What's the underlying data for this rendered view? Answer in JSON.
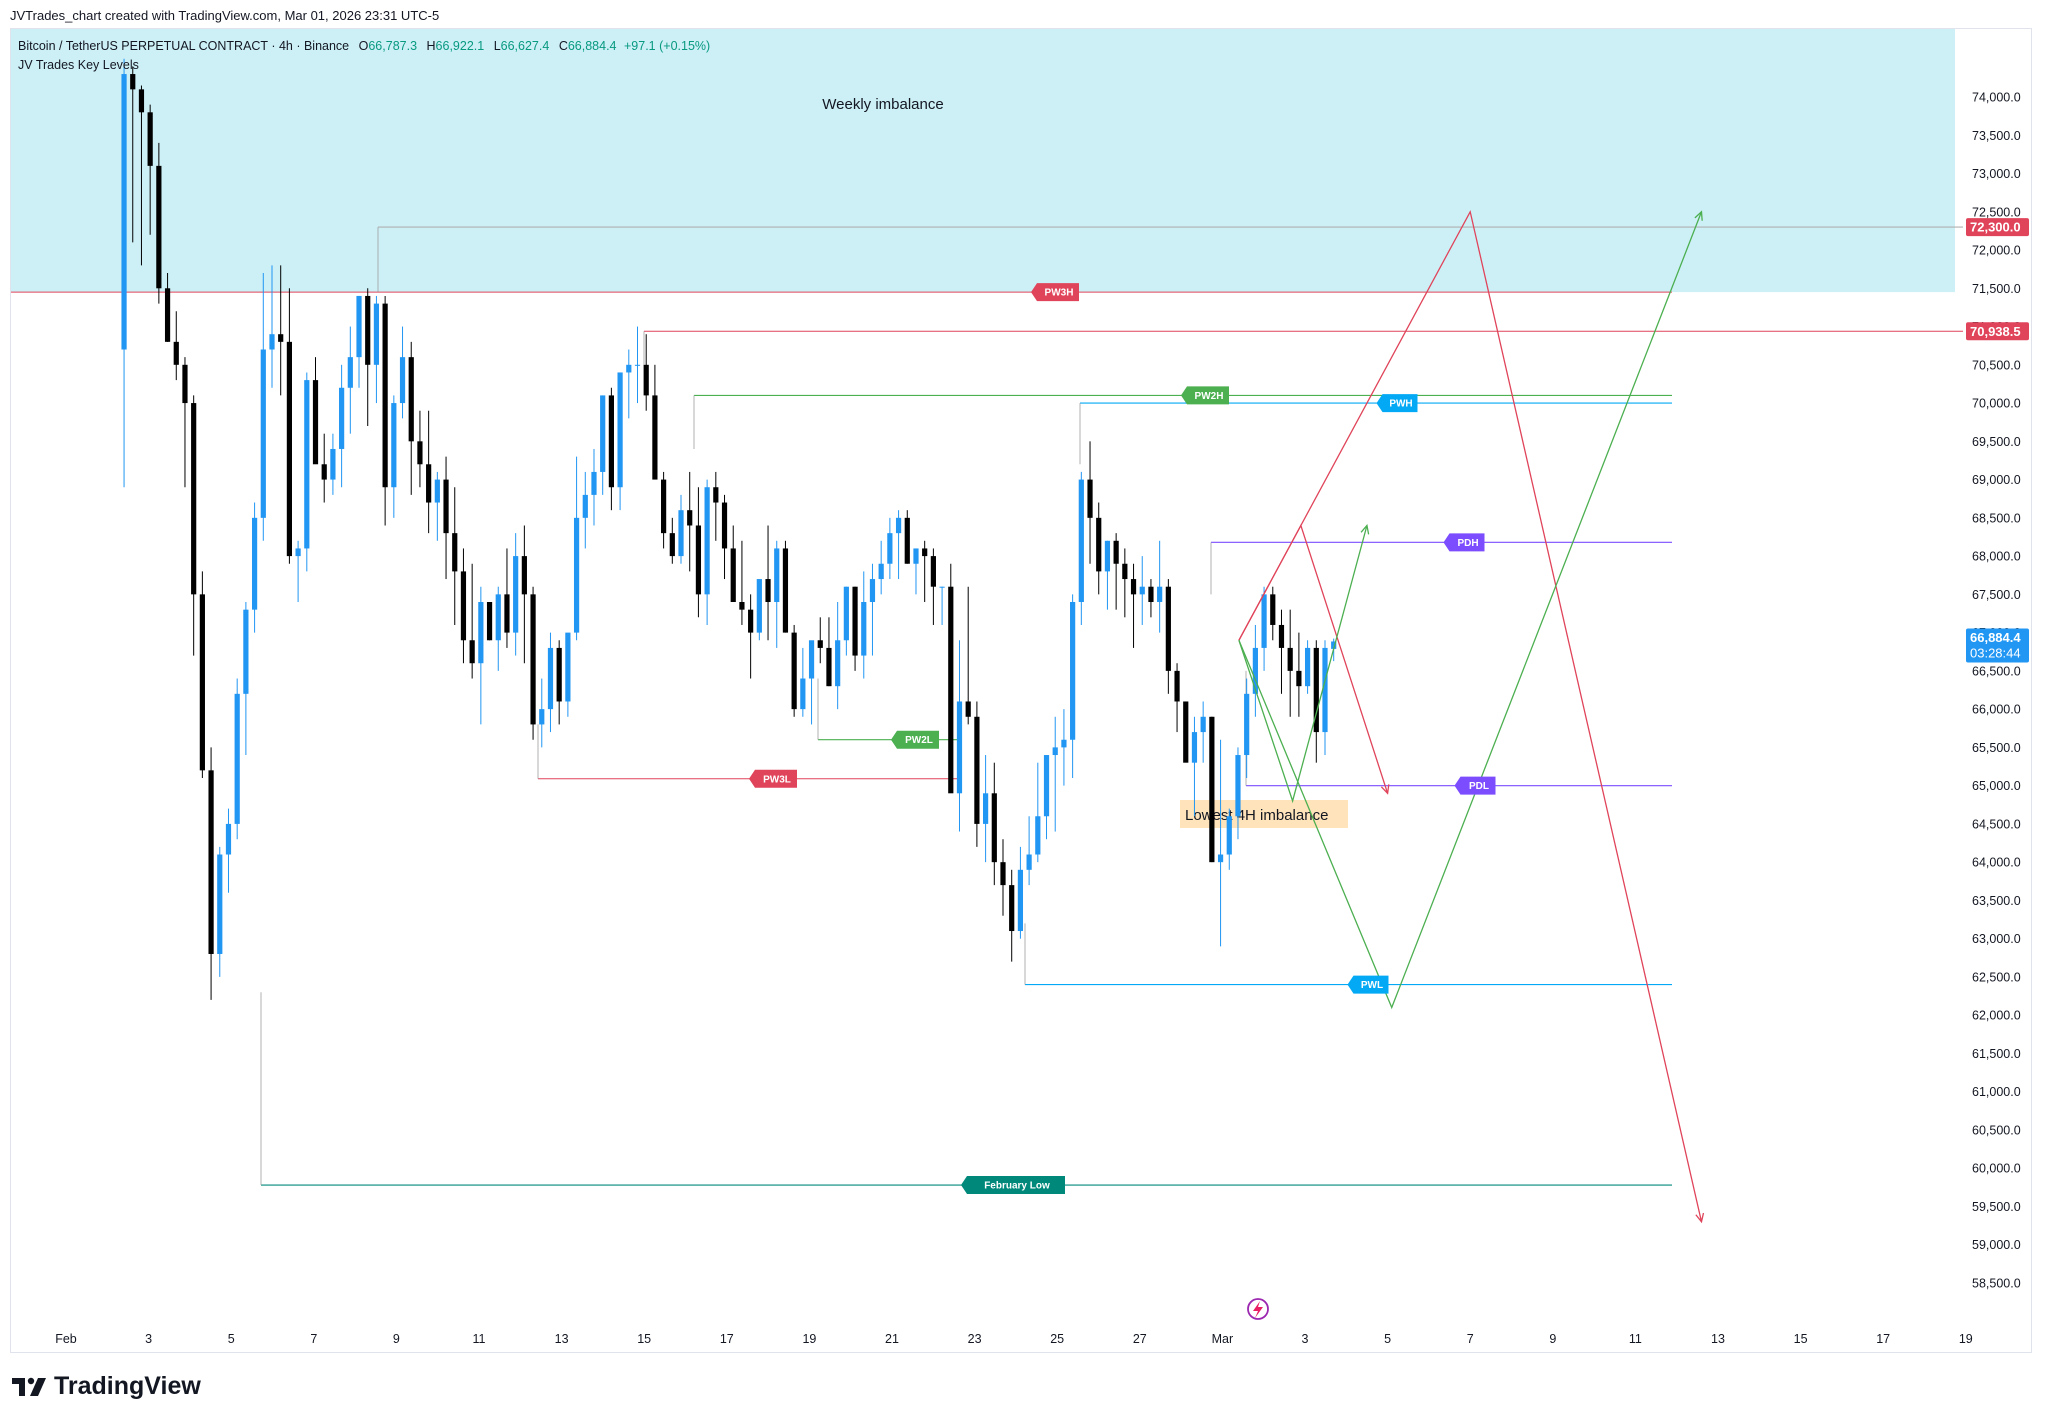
{
  "header": {
    "attribution": "JVTrades_chart created with TradingView.com, Mar 01, 2026 23:31 UTC-5"
  },
  "legend": {
    "symbol": "Bitcoin / TetherUS PERPETUAL CONTRACT · 4h · Binance",
    "open_label": "O",
    "open": "66,787.3",
    "high_label": "H",
    "high": "66,922.1",
    "low_label": "L",
    "low": "66,627.4",
    "close_label": "C",
    "close": "66,884.4",
    "change": "+97.1 (+0.15%)",
    "indicator": "JV Trades Key Levels"
  },
  "branding": {
    "logo_text": "TradingView"
  },
  "colors": {
    "up": "#2196f3",
    "down": "#000000",
    "zone": "#cdf0f7",
    "red": "#e0445a",
    "green": "#4caf50",
    "blue": "#03a9f4",
    "purple": "#7c4dff",
    "teal": "#00897b",
    "orange_box": "#ffe0b2"
  },
  "chart_data": {
    "type": "candlestick",
    "symbol": "BTCUSDT.P",
    "timeframe": "4h",
    "ylim": [
      58250,
      74400
    ],
    "y_ticks": [
      "74,000.0",
      "73,500.0",
      "73,000.0",
      "72,500.0",
      "72,000.0",
      "71,500.0",
      "71,000.0",
      "70,500.0",
      "70,000.0",
      "69,500.0",
      "69,000.0",
      "68,500.0",
      "68,000.0",
      "67,500.0",
      "67,000.0",
      "66,500.0",
      "66,000.0",
      "65,500.0",
      "65,000.0",
      "64,500.0",
      "64,000.0",
      "63,500.0",
      "63,000.0",
      "62,500.0",
      "62,000.0",
      "61,500.0",
      "61,000.0",
      "60,500.0",
      "60,000.0",
      "59,500.0",
      "59,000.0",
      "58,500.0"
    ],
    "y_tick_values": [
      74000,
      73500,
      73000,
      72500,
      72000,
      71500,
      71000,
      70500,
      70000,
      69500,
      69000,
      68500,
      68000,
      67500,
      67000,
      66500,
      66000,
      65500,
      65000,
      64500,
      64000,
      63500,
      63000,
      62500,
      62000,
      61500,
      61000,
      60500,
      60000,
      59500,
      59000,
      58500
    ],
    "x_ticks": [
      "Feb",
      "3",
      "5",
      "7",
      "9",
      "11",
      "13",
      "15",
      "17",
      "19",
      "21",
      "23",
      "25",
      "27",
      "Mar",
      "3",
      "5",
      "7",
      "9",
      "11",
      "13",
      "15",
      "17",
      "19"
    ],
    "x_tick_days": [
      0,
      2,
      4,
      6,
      8,
      10,
      12,
      14,
      16,
      18,
      20,
      22,
      24,
      26,
      28,
      30,
      32,
      34,
      36,
      38,
      40,
      42,
      44,
      46
    ],
    "x_axis_origin": "Feb 1",
    "candles_4h_ohlc": [
      [
        70700,
        74500,
        68900,
        74300
      ],
      [
        74300,
        74400,
        72100,
        74100
      ],
      [
        74100,
        74150,
        71800,
        73800
      ],
      [
        73800,
        73900,
        72200,
        73100
      ],
      [
        73100,
        73400,
        71300,
        71500
      ],
      [
        71500,
        71700,
        70800,
        70800
      ],
      [
        70800,
        71200,
        70300,
        70500
      ],
      [
        70500,
        70600,
        68900,
        70000
      ],
      [
        70000,
        70100,
        66700,
        67500
      ],
      [
        67500,
        67800,
        65100,
        65200
      ],
      [
        65200,
        65500,
        62200,
        62800
      ],
      [
        62800,
        64200,
        62500,
        64100
      ],
      [
        64100,
        64700,
        63600,
        64500
      ],
      [
        64500,
        66400,
        64300,
        66200
      ],
      [
        66200,
        67400,
        65400,
        67300
      ],
      [
        67300,
        68700,
        67000,
        68500
      ],
      [
        68500,
        71700,
        68200,
        70700
      ],
      [
        70700,
        71800,
        70200,
        70900
      ],
      [
        70900,
        71800,
        70100,
        70800
      ],
      [
        70800,
        71500,
        67900,
        68000
      ],
      [
        68000,
        68200,
        67400,
        68100
      ],
      [
        68100,
        70400,
        67800,
        70300
      ],
      [
        70300,
        70600,
        69600,
        69200
      ],
      [
        69200,
        69600,
        68700,
        69000
      ],
      [
        69000,
        69600,
        68800,
        69400
      ],
      [
        69400,
        70500,
        68900,
        70200
      ],
      [
        70200,
        71000,
        69600,
        70600
      ],
      [
        70600,
        71400,
        70200,
        71400
      ],
      [
        71400,
        71500,
        69700,
        70500
      ],
      [
        70500,
        71400,
        70000,
        71300
      ],
      [
        71300,
        71400,
        68400,
        68900
      ],
      [
        68900,
        70100,
        68500,
        70000
      ],
      [
        70000,
        71000,
        69800,
        70600
      ],
      [
        70600,
        70800,
        68800,
        69500
      ],
      [
        69500,
        69900,
        68900,
        69200
      ],
      [
        69200,
        69900,
        68300,
        68700
      ],
      [
        68700,
        69100,
        68200,
        69000
      ],
      [
        69000,
        69300,
        67700,
        68300
      ],
      [
        68300,
        68900,
        67100,
        67800
      ],
      [
        67800,
        68100,
        66600,
        66900
      ],
      [
        66900,
        67900,
        66400,
        66600
      ],
      [
        66600,
        67600,
        65800,
        67400
      ],
      [
        67400,
        67400,
        66900,
        66900
      ],
      [
        66900,
        67600,
        66500,
        67500
      ],
      [
        67500,
        68100,
        66800,
        67000
      ],
      [
        67000,
        68300,
        66700,
        68000
      ],
      [
        68000,
        68400,
        66600,
        67500
      ],
      [
        67500,
        67600,
        65600,
        65800
      ],
      [
        65800,
        66400,
        65500,
        66000
      ],
      [
        66000,
        67000,
        65700,
        66800
      ],
      [
        66800,
        66900,
        65800,
        66100
      ],
      [
        66100,
        66800,
        65900,
        67000
      ],
      [
        67000,
        69300,
        66900,
        68500
      ],
      [
        68500,
        69100,
        68100,
        68800
      ],
      [
        68800,
        69400,
        68400,
        69100
      ],
      [
        69100,
        70100,
        68800,
        70100
      ],
      [
        70100,
        70200,
        68600,
        68900
      ],
      [
        68900,
        70300,
        68600,
        70400
      ],
      [
        70400,
        70700,
        69800,
        70500
      ],
      [
        70500,
        71000,
        70000,
        70500
      ],
      [
        70500,
        70900,
        69900,
        70100
      ],
      [
        70100,
        70500,
        69600,
        69000
      ],
      [
        69000,
        69100,
        68100,
        68300
      ],
      [
        68300,
        68500,
        67900,
        68000
      ],
      [
        68000,
        68800,
        67900,
        68600
      ],
      [
        68600,
        69100,
        67800,
        68400
      ],
      [
        68400,
        68900,
        67200,
        67500
      ],
      [
        67500,
        69000,
        67100,
        68900
      ],
      [
        68900,
        69100,
        68200,
        68700
      ],
      [
        68700,
        68800,
        67700,
        68100
      ],
      [
        68100,
        68400,
        67600,
        67400
      ],
      [
        67400,
        68200,
        67100,
        67300
      ],
      [
        67300,
        67500,
        66400,
        67000
      ],
      [
        67000,
        67400,
        66900,
        67700
      ],
      [
        67700,
        68400,
        66900,
        67400
      ],
      [
        67400,
        68200,
        66800,
        68100
      ],
      [
        68100,
        68200,
        67000,
        67000
      ],
      [
        67000,
        67100,
        65900,
        66000
      ],
      [
        66000,
        66800,
        65900,
        66400
      ],
      [
        66400,
        66700,
        65800,
        66900
      ],
      [
        66900,
        67200,
        66600,
        66800
      ],
      [
        66800,
        67200,
        66300,
        66300
      ],
      [
        66300,
        67400,
        66000,
        66900
      ],
      [
        66900,
        67600,
        66700,
        67600
      ],
      [
        67600,
        67600,
        66500,
        66700
      ],
      [
        66700,
        67800,
        66400,
        67400
      ],
      [
        67400,
        67900,
        66700,
        67700
      ],
      [
        67700,
        68200,
        67500,
        67900
      ],
      [
        67900,
        68500,
        67700,
        68300
      ],
      [
        68300,
        68600,
        67700,
        68500
      ],
      [
        68500,
        68600,
        67900,
        67900
      ],
      [
        67900,
        68000,
        67500,
        68100
      ],
      [
        68100,
        68200,
        67400,
        68000
      ],
      [
        68000,
        68100,
        67100,
        67600
      ],
      [
        67600,
        67600,
        67100,
        67600
      ],
      [
        67600,
        67900,
        66600,
        64900
      ],
      [
        64900,
        66900,
        64400,
        66100
      ],
      [
        66100,
        67600,
        65800,
        65900
      ],
      [
        65900,
        66100,
        64200,
        64500
      ],
      [
        64500,
        65400,
        64000,
        64900
      ],
      [
        64900,
        65300,
        63700,
        64000
      ],
      [
        64000,
        64300,
        63300,
        63700
      ],
      [
        63700,
        63900,
        62700,
        63100
      ],
      [
        63100,
        64200,
        63000,
        63900
      ],
      [
        63900,
        64600,
        63700,
        64100
      ],
      [
        64100,
        65300,
        64000,
        64600
      ],
      [
        64600,
        65400,
        64300,
        65400
      ],
      [
        65400,
        65900,
        64400,
        65500
      ],
      [
        65500,
        66000,
        65000,
        65600
      ],
      [
        65600,
        67500,
        65100,
        67400
      ],
      [
        67400,
        69100,
        67100,
        69000
      ],
      [
        69000,
        69500,
        67900,
        68500
      ],
      [
        68500,
        68700,
        67500,
        67800
      ],
      [
        67800,
        68200,
        67300,
        68200
      ],
      [
        68200,
        68300,
        67300,
        67900
      ],
      [
        67900,
        68100,
        67200,
        67700
      ],
      [
        67700,
        67900,
        66800,
        67500
      ],
      [
        67500,
        68000,
        67100,
        67600
      ],
      [
        67600,
        67700,
        67200,
        67400
      ],
      [
        67400,
        68200,
        67000,
        67600
      ],
      [
        67600,
        67700,
        66200,
        66500
      ],
      [
        66500,
        66600,
        65700,
        66100
      ],
      [
        66100,
        66100,
        65400,
        65300
      ],
      [
        65300,
        65900,
        64600,
        65700
      ],
      [
        65700,
        66100,
        65300,
        65900
      ],
      [
        65900,
        65900,
        64000,
        64000
      ],
      [
        64000,
        65600,
        62900,
        64100
      ],
      [
        64100,
        64700,
        63900,
        64600
      ],
      [
        64600,
        65500,
        64300,
        65400
      ],
      [
        65400,
        66400,
        65100,
        66200
      ],
      [
        66200,
        67100,
        65900,
        66800
      ],
      [
        66800,
        67600,
        66500,
        67500
      ],
      [
        67500,
        67600,
        66900,
        67100
      ],
      [
        67100,
        67300,
        66200,
        66800
      ],
      [
        66800,
        67300,
        65900,
        66500
      ],
      [
        66500,
        67000,
        65900,
        66300
      ],
      [
        66300,
        66900,
        66200,
        66800
      ],
      [
        66800,
        66900,
        65300,
        65700
      ],
      [
        65700,
        66900,
        65400,
        66800
      ],
      [
        66787.3,
        66922.1,
        66627.4,
        66884.4
      ]
    ],
    "zones": [
      {
        "label": "Weekly imbalance",
        "from": 71450,
        "to": 74400
      },
      {
        "label": "Lowest 4H imbalance",
        "from": 64300,
        "to": 64700
      }
    ],
    "key_levels": [
      {
        "label": "PW3H",
        "price": 71450,
        "color": "#e0445a"
      },
      {
        "label": "",
        "price": 72300,
        "color": "#9e9e9e"
      },
      {
        "label": "",
        "price": 70938.5,
        "color": "#e0445a"
      },
      {
        "label": "PW2H",
        "price": 70100,
        "color": "#4caf50"
      },
      {
        "label": "PWH",
        "price": 70000,
        "color": "#03a9f4"
      },
      {
        "label": "PDH",
        "price": 68180,
        "color": "#7c4dff"
      },
      {
        "label": "PDL",
        "price": 65000,
        "color": "#7c4dff"
      },
      {
        "label": "PW2L",
        "price": 65600,
        "color": "#4caf50"
      },
      {
        "label": "PW3L",
        "price": 65090,
        "color": "#e0445a"
      },
      {
        "label": "PWL",
        "price": 62400,
        "color": "#03a9f4"
      },
      {
        "label": "February Low",
        "price": 59780,
        "color": "#00897b"
      }
    ],
    "projections": [
      {
        "color": "#e0445a",
        "points": [
          [
            28.4,
            66900
          ],
          [
            29.9,
            68400
          ],
          [
            32.0,
            64900
          ]
        ]
      },
      {
        "color": "#e0445a",
        "points": [
          [
            28.4,
            66900
          ],
          [
            34.0,
            72500
          ],
          [
            39.6,
            59300
          ]
        ]
      },
      {
        "color": "#4caf50",
        "points": [
          [
            28.4,
            66900
          ],
          [
            29.7,
            64800
          ],
          [
            31.5,
            68400
          ]
        ]
      },
      {
        "color": "#4caf50",
        "points": [
          [
            28.4,
            66900
          ],
          [
            32.1,
            62100
          ],
          [
            39.6,
            72500
          ]
        ]
      }
    ],
    "price_labels": [
      {
        "text": "72,300.0",
        "price": 72300,
        "color": "#e0445a"
      },
      {
        "text": "70,938.5",
        "price": 70938.5,
        "color": "#e0445a"
      },
      {
        "text": "66,884.4",
        "price": 66884.4,
        "color": "#2196f3"
      }
    ],
    "countdown": "03:28:44"
  }
}
